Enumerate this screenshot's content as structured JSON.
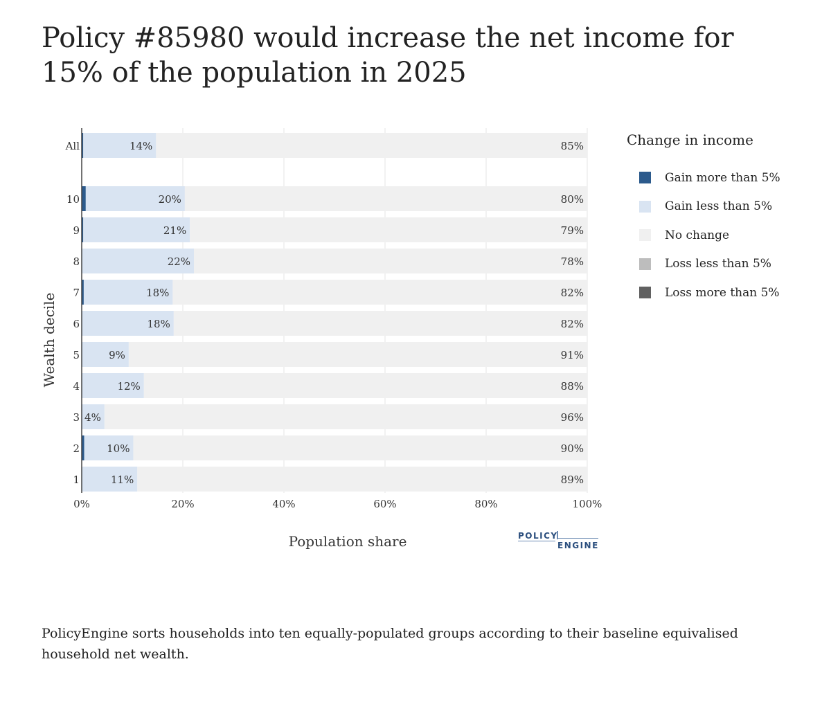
{
  "title": "Policy #85980 would increase the net income for 15% of the population in 2025",
  "caption": "PolicyEngine sorts households into ten equally-populated groups according to their baseline equivalised household net wealth.",
  "logo": {
    "line1": "POLICY",
    "line2": "ENGINE"
  },
  "legend": {
    "title": "Change in income",
    "items": [
      {
        "label": "Gain more than 5%",
        "color": "#2c5a8c"
      },
      {
        "label": "Gain less than 5%",
        "color": "#d9e4f2"
      },
      {
        "label": "No change",
        "color": "#f0f0f0"
      },
      {
        "label": "Loss less than 5%",
        "color": "#bdbdbd"
      },
      {
        "label": "Loss more than 5%",
        "color": "#616161"
      }
    ]
  },
  "chart_data": {
    "type": "bar",
    "orientation": "horizontal",
    "stacked": true,
    "xlabel": "Population share",
    "ylabel": "Wealth decile",
    "xlim": [
      0,
      100
    ],
    "xticks": [
      "0%",
      "20%",
      "40%",
      "60%",
      "80%",
      "100%"
    ],
    "grid": true,
    "legend_position": "right",
    "categories": [
      "All",
      "10",
      "9",
      "8",
      "7",
      "6",
      "5",
      "4",
      "3",
      "2",
      "1"
    ],
    "series": [
      {
        "name": "Gain more than 5%",
        "color": "#2c5a8c",
        "values": [
          0.3,
          0.8,
          0.3,
          0.1,
          0.4,
          0.1,
          0.1,
          0.1,
          0.1,
          0.5,
          0.1
        ]
      },
      {
        "name": "Gain less than 5%",
        "color": "#d9e4f2",
        "values": [
          14.4,
          19.6,
          21.1,
          22.1,
          17.6,
          18.1,
          9.2,
          12.2,
          4.4,
          9.7,
          10.9
        ]
      },
      {
        "name": "No change",
        "color": "#f0f0f0",
        "values": [
          85.3,
          79.6,
          78.6,
          77.8,
          82.0,
          81.8,
          90.7,
          87.7,
          95.5,
          89.8,
          89.0
        ]
      },
      {
        "name": "Loss less than 5%",
        "color": "#bdbdbd",
        "values": [
          0,
          0,
          0,
          0,
          0,
          0,
          0,
          0,
          0,
          0,
          0
        ]
      },
      {
        "name": "Loss more than 5%",
        "color": "#616161",
        "values": [
          0,
          0,
          0,
          0,
          0,
          0,
          0,
          0,
          0,
          0,
          0
        ]
      }
    ],
    "gain_labels": [
      "14%",
      "20%",
      "21%",
      "22%",
      "18%",
      "18%",
      "9%",
      "12%",
      "4%",
      "10%",
      "11%"
    ],
    "nochange_labels": [
      "85%",
      "80%",
      "79%",
      "78%",
      "82%",
      "82%",
      "91%",
      "88%",
      "96%",
      "90%",
      "89%"
    ]
  }
}
